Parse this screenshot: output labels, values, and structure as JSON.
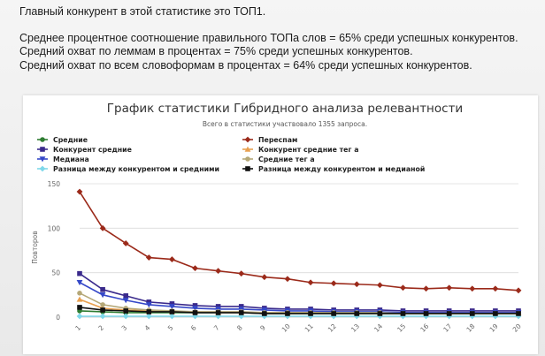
{
  "text": {
    "headline": "Главный конкурент в этой статистике это ТОП1.",
    "line1": "Среднее процентное соотношение правильного ТОПа слов = 65% среди успешных конкурентов.",
    "line2": "Средний охват по леммам в процентах = 75% среди успешных конкурентов.",
    "line3": "Средний охват по всем словоформам в процентах = 64% среди успешных конкурентов."
  },
  "colors": {
    "srednie": "#2e7d32",
    "perespam": "#9b2a1a",
    "konkurent_srednie": "#3a2a8c",
    "konkurent_srednie_teg_a": "#e8a050",
    "mediana": "#3548c8",
    "srednie_teg_a": "#b5a878",
    "raznica_srednie": "#7fd8ea",
    "raznica_mediana": "#111111"
  },
  "chart_data": {
    "type": "line",
    "title": "График статистики Гибридного анализа релевантности",
    "subtitle": "Всего в статистики участвовало 1355 запроса.",
    "xlabel": "",
    "ylabel": "Повторов",
    "x": [
      "1",
      "2",
      "3",
      "4",
      "5",
      "6",
      "7",
      "8",
      "9",
      "10",
      "11",
      "12",
      "13",
      "14",
      "15",
      "16",
      "17",
      "18",
      "19",
      "20"
    ],
    "ylim": [
      0,
      150
    ],
    "yticks": [
      "0",
      "50",
      "100",
      "150"
    ],
    "legend_position": "top",
    "series": [
      {
        "name": "Средние",
        "key": "srednie",
        "marker": "circle",
        "values": [
          7,
          6,
          5,
          5,
          5,
          5,
          5,
          5,
          4,
          4,
          4,
          4,
          4,
          4,
          4,
          4,
          4,
          4,
          4,
          4
        ]
      },
      {
        "name": "Переспам",
        "key": "perespam",
        "marker": "diamond",
        "values": [
          141,
          100,
          83,
          67,
          65,
          55,
          52,
          49,
          45,
          43,
          39,
          38,
          37,
          36,
          33,
          32,
          33,
          32,
          32,
          30
        ]
      },
      {
        "name": "Конкурент средние",
        "key": "konkurent_srednie",
        "marker": "square",
        "values": [
          49,
          31,
          24,
          17,
          15,
          13,
          12,
          12,
          10,
          9,
          9,
          8,
          8,
          8,
          7,
          7,
          7,
          7,
          7,
          7
        ]
      },
      {
        "name": "Конкурент средние тег а",
        "key": "konkurent_srednie_teg_a",
        "marker": "triangle",
        "values": [
          20,
          10,
          8,
          7,
          6,
          6,
          5,
          5,
          5,
          5,
          5,
          5,
          5,
          5,
          5,
          5,
          5,
          5,
          5,
          5
        ]
      },
      {
        "name": "Медиана",
        "key": "mediana",
        "marker": "triangle-down",
        "values": [
          39,
          25,
          19,
          14,
          12,
          10,
          9,
          9,
          8,
          7,
          7,
          6,
          6,
          6,
          5,
          5,
          5,
          5,
          5,
          5
        ]
      },
      {
        "name": "Средние тег а",
        "key": "srednie_teg_a",
        "marker": "circle",
        "values": [
          27,
          14,
          10,
          8,
          7,
          6,
          6,
          6,
          5,
          5,
          5,
          5,
          5,
          5,
          4,
          4,
          4,
          4,
          4,
          4
        ]
      },
      {
        "name": "Разница между конкурентом и средними",
        "key": "raznica_srednie",
        "marker": "diamond",
        "values": [
          1,
          1,
          1,
          1,
          1,
          1,
          1,
          1,
          1,
          1,
          1,
          1,
          1,
          1,
          1,
          1,
          1,
          1,
          1,
          1
        ]
      },
      {
        "name": "Разница между конкурентом и медианой",
        "key": "raznica_mediana",
        "marker": "square",
        "values": [
          11,
          8,
          7,
          6,
          6,
          5,
          5,
          5,
          4,
          4,
          4,
          4,
          4,
          4,
          4,
          4,
          4,
          4,
          4,
          4
        ]
      }
    ]
  }
}
